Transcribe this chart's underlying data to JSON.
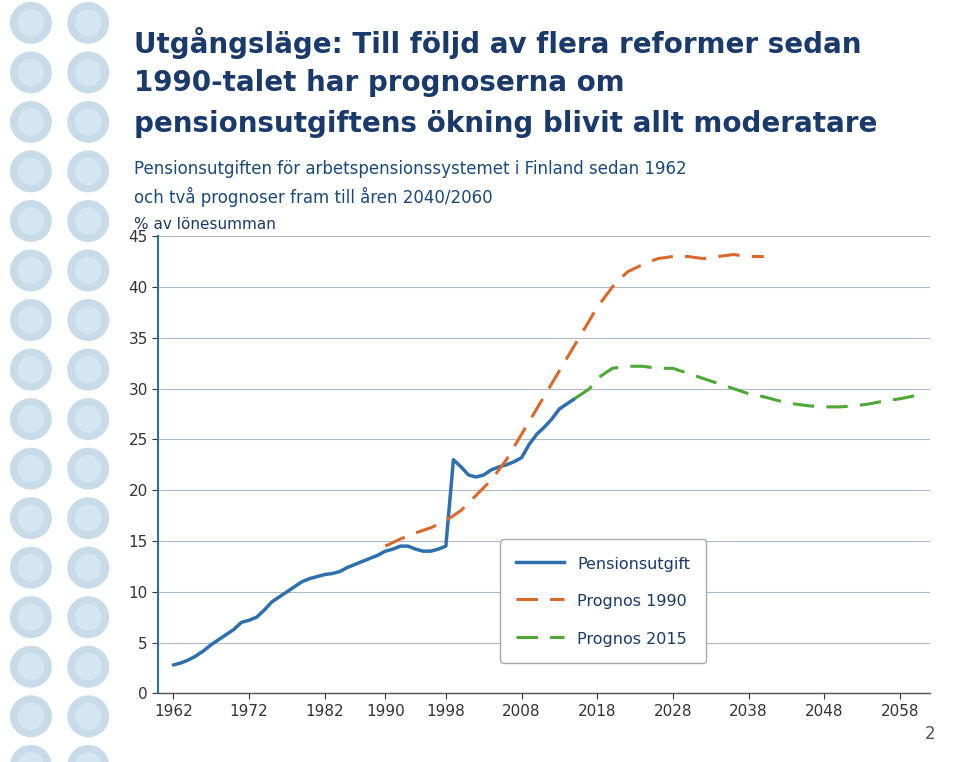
{
  "title_line1": "Utgångsläge: Till följd av flera reformer sedan",
  "title_line2": "1990-talet har prognoserna om",
  "title_line3": "pensionsutgiftens ökning blivit allt moderatare",
  "subtitle_line1": "Pensionsutgiften för arbetspensionssystemet i Finland sedan 1962",
  "subtitle_line2": "och två prognoser fram till åren 2040/2060",
  "ylabel": "% av lönesumman",
  "background_color": "#f0f7fc",
  "title_color": "#1a3a6b",
  "subtitle_color": "#1a4a7a",
  "ylabel_color": "#1a3a6b",
  "plot_bg": "#ffffff",
  "grid_color": "#b0b8c8",
  "ylim": [
    0,
    45
  ],
  "yticks": [
    0,
    5,
    10,
    15,
    20,
    25,
    30,
    35,
    40,
    45
  ],
  "xticks": [
    1962,
    1972,
    1982,
    1990,
    1998,
    2008,
    2018,
    2028,
    2038,
    2048,
    2058
  ],
  "pensionsutgift_x": [
    1962,
    1963,
    1964,
    1965,
    1966,
    1967,
    1968,
    1969,
    1970,
    1971,
    1972,
    1973,
    1974,
    1975,
    1976,
    1977,
    1978,
    1979,
    1980,
    1981,
    1982,
    1983,
    1984,
    1985,
    1986,
    1987,
    1988,
    1989,
    1990,
    1991,
    1992,
    1993,
    1994,
    1995,
    1996,
    1997,
    1998,
    1999,
    2000,
    2001,
    2002,
    2003,
    2004,
    2005,
    2006,
    2007,
    2008,
    2009,
    2010,
    2011,
    2012,
    2013,
    2014,
    2015
  ],
  "pensionsutgift_y": [
    2.8,
    3.0,
    3.3,
    3.7,
    4.2,
    4.8,
    5.3,
    5.8,
    6.3,
    7.0,
    7.2,
    7.5,
    8.2,
    9.0,
    9.5,
    10.0,
    10.5,
    11.0,
    11.3,
    11.5,
    11.7,
    11.8,
    12.0,
    12.4,
    12.7,
    13.0,
    13.3,
    13.6,
    14.0,
    14.2,
    14.5,
    14.5,
    14.2,
    14.0,
    14.0,
    14.2,
    14.5,
    23.0,
    22.3,
    21.5,
    21.3,
    21.5,
    22.0,
    22.3,
    22.5,
    22.8,
    23.2,
    24.5,
    25.5,
    26.2,
    27.0,
    28.0,
    28.5,
    29.0
  ],
  "prognos1990_x": [
    1990,
    1992,
    1994,
    1996,
    1998,
    2000,
    2002,
    2004,
    2006,
    2008,
    2010,
    2012,
    2014,
    2016,
    2018,
    2020,
    2022,
    2024,
    2026,
    2028,
    2030,
    2032,
    2034,
    2036,
    2038,
    2040
  ],
  "prognos1990_y": [
    14.5,
    15.2,
    15.8,
    16.3,
    17.0,
    18.0,
    19.5,
    21.0,
    23.0,
    25.5,
    28.0,
    30.5,
    33.0,
    35.5,
    38.0,
    40.0,
    41.5,
    42.2,
    42.8,
    43.0,
    43.0,
    42.8,
    43.0,
    43.2,
    43.0,
    43.0
  ],
  "prognos2015_x": [
    2015,
    2016,
    2017,
    2018,
    2019,
    2020,
    2022,
    2024,
    2026,
    2028,
    2030,
    2032,
    2034,
    2036,
    2038,
    2040,
    2042,
    2044,
    2046,
    2048,
    2050,
    2052,
    2054,
    2056,
    2058,
    2060
  ],
  "prognos2015_y": [
    29.0,
    29.5,
    30.0,
    31.0,
    31.5,
    32.0,
    32.2,
    32.2,
    32.0,
    32.0,
    31.5,
    31.0,
    30.5,
    30.0,
    29.5,
    29.2,
    28.8,
    28.5,
    28.3,
    28.2,
    28.2,
    28.3,
    28.5,
    28.8,
    29.0,
    29.3
  ],
  "color_pensionsutgift": "#2e6fad",
  "color_prognos1990": "#d9692a",
  "color_prognos2015": "#4ea836",
  "legend_labels": [
    "Pensionsutgift",
    "Prognos 1990",
    "Prognos 2015"
  ],
  "page_number": "2",
  "left_panel_color": "#c5dff0",
  "circle_color_outer": "#b8d4e8",
  "circle_color_inner": "#d8eaf6"
}
